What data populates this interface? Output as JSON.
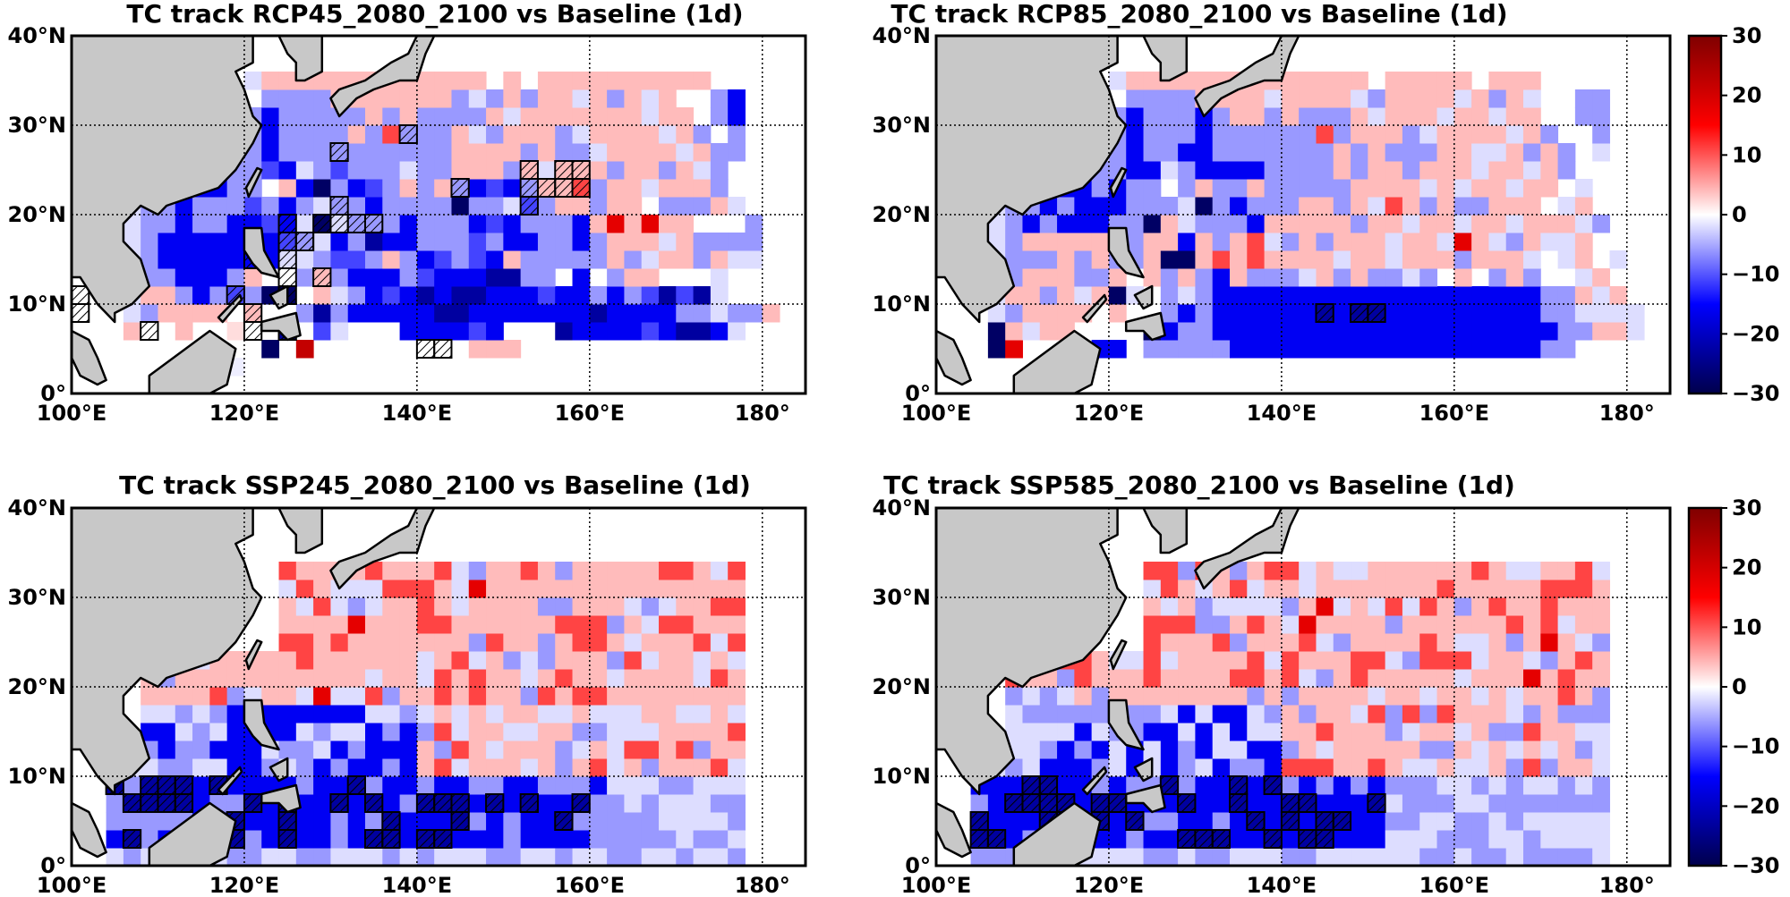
{
  "figure": {
    "type": "heatmap",
    "value_range": [
      -30,
      30
    ],
    "colormap": "seismic",
    "colormap_stops": [
      "#00004c",
      "#0000ff",
      "#ffffff",
      "#ff0000",
      "#7f0000"
    ],
    "land_color": "#c8c8c8",
    "grid_style": "dotted"
  },
  "chart_data": [
    {
      "type": "heatmap",
      "title": "TC track RCP45_2080_2100 vs Baseline (1d)",
      "x_ticks": [
        "100°E",
        "120°E",
        "140°E",
        "160°E",
        "180°"
      ],
      "y_ticks": [
        "0°",
        "10°N",
        "20°N",
        "30°N",
        "40°N"
      ],
      "xlim": [
        100,
        185
      ],
      "ylim": [
        0,
        40
      ],
      "grid_spacing_deg": 2,
      "colorbar": false,
      "rows_south_to_north": [
        "..............................................................",
        ".........c.................................",
        "...........h.C.........ppp.................",
        "...p..p..w..H.Ll...BBBBLB...HBBBBLBHHBl....",
        "...lbpppp.p..bHbBBBBBHHBBBBBBBHBBBBbblbbp..",
        "...lppbBbLbhh.plbBLBHBHHBBBLBBbBbLHLHl.....",
        "...bbbBBBbp..bpbBBBbLBBBHHbb.B.bpp...l.....",
        "...lbBBBBBBBllbLLbpbBLbLBpbbbbbpblppbpll...",
        "...lbBBBBBBBLblBbHBBbbbLbBBbbBbppplpbbbb...",
        "...lbbBbbBBLBlhlbbbBbbbBLBbbbBpRpRpp...b...",
        "...lbbBbbbLbBblbbBbbbbhbblLbppbpp.bbbpl....",
        "....bpbBBbb.pBhbBLbpbpbBLBbppPbpplpppb.....",
        "......bbbbbLBlbLbbblbbpppbplpppbppbplb.....",
        ".........lbBbbbbbbbbbbppppbpbblpppplpbb....",
        ".........bbBbbbbpbPbbbplbpppblpppplpb.b....",
        "..........bBbbbbbpbpbbbbplppppppplpp.bB....",
        "...........bbbbpppppppblbpbpplpbplp..bB....",
        "..........lppppppppppppp.p.pppppppppp......",
        ".........................................",
        ".........................................",
        "........................................."
      ],
      "hatched_cells": [
        [
          3,
          4
        ],
        [
          3,
          10
        ],
        [
          5,
          9
        ],
        [
          5,
          12
        ],
        [
          6,
          12
        ],
        [
          6,
          14
        ],
        [
          7,
          10
        ],
        [
          7,
          12
        ],
        [
          8,
          12
        ],
        [
          8,
          13
        ],
        [
          8,
          13
        ],
        [
          9,
          12
        ],
        [
          9,
          14
        ],
        [
          9,
          15
        ],
        [
          9,
          16
        ],
        [
          9,
          17
        ],
        [
          10,
          15
        ],
        [
          11,
          22
        ],
        [
          13,
          15
        ],
        [
          14,
          19
        ],
        [
          10,
          26
        ],
        [
          11,
          26
        ],
        [
          12,
          26
        ],
        [
          11,
          27
        ],
        [
          11,
          28
        ],
        [
          11,
          29
        ],
        [
          12,
          28
        ],
        [
          12,
          29
        ],
        [
          2,
          20
        ],
        [
          3,
          12
        ],
        [
          4,
          10
        ],
        [
          4,
          0
        ],
        [
          5,
          0
        ],
        [
          2,
          21
        ]
      ]
    },
    {
      "type": "heatmap",
      "title": "TC track RCP85_2080_2100 vs Baseline (1d)",
      "x_ticks": [
        "100°E",
        "120°E",
        "140°E",
        "160°E",
        "180°"
      ],
      "y_ticks": [
        "0°",
        "10°N",
        "20°N",
        "30°N",
        "40°N"
      ],
      "xlim": [
        100,
        185
      ],
      "ylim": [
        0,
        40
      ],
      "grid_spacing_deg": 2,
      "colorbar": true,
      "colorbar_ticks": [
        "30",
        "20",
        "10",
        "0",
        "−10",
        "−20",
        "−30"
      ],
      "rows_south_to_north": [
        "..............................................................",
        "...........................................",
        "...hR....BB.bbbbbBBBBBBBBBBBBBBBBBBbb......",
        "...hplpp....hBbbBBBBBBBBBBBBBBBBBBBBbbppl..",
        "...lbpppp.p..bBbBBBBBBHBHHBBBBBBBBBbbllll..",
        "...lppbplphl.blbBBBBBBBBBBBBBBBBBBBbbplp...",
        "...bbpppbbp.pbpbBpbbblpbpbblb.p.bpb..lp....",
        "...lbbbpbpbbphhpPpPpppplpplpppbpppl.lp.l...",
        "...lbpppppbbppBpbpPlbpbppplpplRplbpllp.....",
        "...lbBbBBBbbhplbbbBpppppbpplpplpplppplb....",
        "...lbbBbBBBbbblhbBbbbppbplPpbpbbppp.lp.....",
        "....bbbBBbBbb.bpbbpbbbbbpppplplpplpp.l.....",
        "......bbbbbBBlbBBBBbbbbpbppbppplpplpb......",
        ".........lbBbbBBbbbbbbbpbpbbbppllpbpb.l....",
        ".........bbBbbbBbbbbbbPbpppblpppplpb..b....",
        "..........bBbbbBbppbpbbbplppplpplpp..bb....",
        "...........bbbbpppplpppplbpppplpbpl..bb....",
        "..........lpppppppppppppp.ppppp.ppp......",
        ".........................................",
        ".........................................",
        "........................................."
      ]
    },
    {
      "type": "heatmap",
      "title": "TC track SSP245_2080_2100 vs Baseline (1d)",
      "x_ticks": [
        "100°E",
        "120°E",
        "140°E",
        "160°E",
        "180°"
      ],
      "y_ticks": [
        "0°",
        "10°N",
        "20°N",
        "30°N",
        "40°N"
      ],
      "xlim": [
        100,
        185
      ],
      "ylim": [
        0,
        40
      ],
      "grid_spacing_deg": 2,
      "colorbar": false
    },
    {
      "type": "heatmap",
      "title": "TC track SSP585_2080_2100 vs Baseline (1d)",
      "x_ticks": [
        "100°E",
        "120°E",
        "140°E",
        "160°E",
        "180°"
      ],
      "y_ticks": [
        "0°",
        "10°N",
        "20°N",
        "30°N",
        "40°N"
      ],
      "xlim": [
        100,
        185
      ],
      "ylim": [
        0,
        40
      ],
      "grid_spacing_deg": 2,
      "colorbar": true,
      "colorbar_ticks": [
        "30",
        "20",
        "10",
        "0",
        "−10",
        "−20",
        "−30"
      ]
    }
  ]
}
